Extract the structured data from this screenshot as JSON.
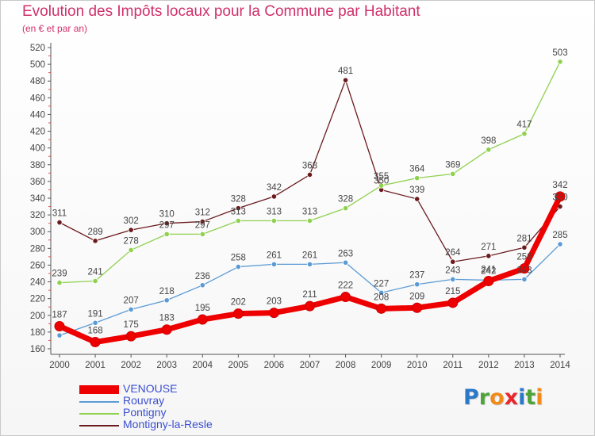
{
  "header": {
    "title": "Evolution des Impôts locaux pour la Commune par Habitant",
    "subtitle": "(en € et par an)"
  },
  "brand": {
    "letters": [
      "P",
      "r",
      "o",
      "x",
      "i",
      "t",
      "i"
    ]
  },
  "colors": {
    "title": "#d0306a",
    "axis": "#555555",
    "label": "#444444",
    "brand": [
      "#2a78c8",
      "#4fa33a",
      "#f28a1a",
      "#e8272d",
      "#2a78c8",
      "#4fa33a",
      "#f28a1a"
    ]
  },
  "chart_data": {
    "type": "line",
    "title": "Evolution des Impôts locaux pour la Commune par Habitant",
    "subtitle": "(en € et par an)",
    "x": [
      "2000",
      "2001",
      "2002",
      "2003",
      "2004",
      "2005",
      "2006",
      "2007",
      "2008",
      "2009",
      "2010",
      "2011",
      "2012",
      "2013",
      "2014"
    ],
    "yticks": [
      "160",
      "180",
      "200",
      "220",
      "240",
      "260",
      "280",
      "300",
      "320",
      "340",
      "360",
      "380",
      "400",
      "420",
      "440",
      "460",
      "480",
      "500",
      "520"
    ],
    "ylim": [
      160,
      520
    ],
    "grid": false,
    "legend_position": "bottom-left",
    "series": [
      {
        "name": "Montigny-la-Resle",
        "color": "#6b1a1e",
        "values": [
          311,
          289,
          302,
          310,
          312,
          328,
          342,
          368,
          481,
          350,
          339,
          264,
          271,
          281,
          330
        ],
        "labels": [
          "311",
          "289",
          "302",
          "310",
          "312",
          "328",
          "342",
          "368",
          "481",
          "350",
          "339",
          "264",
          "271",
          "281",
          "330"
        ]
      },
      {
        "name": "Pontigny",
        "color": "#8fd14f",
        "values": [
          239,
          241,
          278,
          297,
          297,
          313,
          313,
          313,
          328,
          355,
          364,
          369,
          398,
          417,
          503
        ],
        "labels": [
          "239",
          "241",
          "278",
          "297",
          "297",
          "313",
          "313",
          "313",
          "328",
          "355",
          "364",
          "369",
          "398",
          "417",
          "503"
        ]
      },
      {
        "name": "Rouvray",
        "color": "#5b9bd5",
        "values": [
          176,
          191,
          207,
          218,
          236,
          258,
          261,
          261,
          263,
          227,
          237,
          243,
          242,
          243,
          285
        ],
        "labels": [
          "",
          "191",
          "207",
          "218",
          "236",
          "258",
          "261",
          "261",
          "263",
          "227",
          "237",
          "243",
          "242",
          "243",
          "285"
        ]
      },
      {
        "name": "VENOUSE",
        "color": "#ee0000",
        "values": [
          187,
          168,
          175,
          183,
          195,
          202,
          203,
          211,
          222,
          208,
          209,
          215,
          241,
          256,
          342
        ],
        "labels": [
          "187",
          "168",
          "175",
          "183",
          "195",
          "202",
          "203",
          "211",
          "222",
          "208",
          "209",
          "215",
          "241",
          "256",
          "342"
        ]
      }
    ],
    "legend": [
      "VENOUSE",
      "Rouvray",
      "Pontigny",
      "Montigny-la-Resle"
    ]
  }
}
